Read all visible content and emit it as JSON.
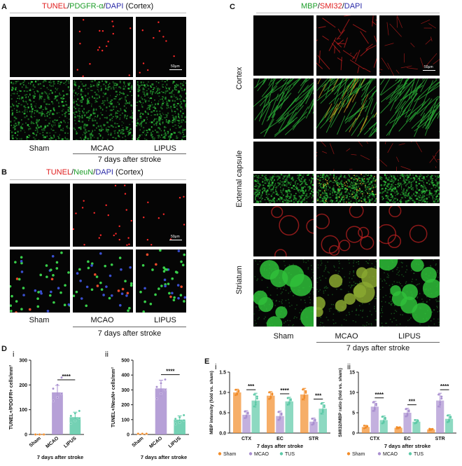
{
  "panelA": {
    "letter": "A",
    "title_parts": [
      {
        "text": "TUNEL",
        "c": "red"
      },
      {
        "text": "/",
        "c": "k"
      },
      {
        "text": "PDGFR-α",
        "c": "grn"
      },
      {
        "text": "/",
        "c": "k"
      },
      {
        "text": "DAPI",
        "c": "blu"
      },
      {
        "text": " (Cortex)",
        "c": "k"
      }
    ],
    "scale": "50μm",
    "groups": [
      "Sham",
      "MCAO",
      "LIPUS"
    ],
    "caption": "7 days after stroke"
  },
  "panelB": {
    "letter": "B",
    "title_parts": [
      {
        "text": "TUNEL",
        "c": "red"
      },
      {
        "text": "/",
        "c": "k"
      },
      {
        "text": "NeuN",
        "c": "grn"
      },
      {
        "text": "/",
        "c": "k"
      },
      {
        "text": "DAPI",
        "c": "blu"
      },
      {
        "text": " (Cortex)",
        "c": "k"
      }
    ],
    "scale": "50μm",
    "groups": [
      "Sham",
      "MCAO",
      "LIPUS"
    ],
    "caption": "7 days after stroke"
  },
  "panelC": {
    "letter": "C",
    "title_parts": [
      {
        "text": "MBP",
        "c": "grn"
      },
      {
        "text": "/",
        "c": "k"
      },
      {
        "text": "SMI32",
        "c": "red"
      },
      {
        "text": "/",
        "c": "k"
      },
      {
        "text": "DAPI",
        "c": "blu"
      }
    ],
    "scale": "50μm",
    "regions": [
      "Cortex",
      "External capsule",
      "Striatum"
    ],
    "groups": [
      "Sham",
      "MCAO",
      "LIPUS"
    ],
    "caption": "7 days after stroke"
  },
  "panelD": {
    "letter": "D",
    "sub_i": "i",
    "sub_ii": "ii"
  },
  "panelE": {
    "letter": "E",
    "sub_i": "i",
    "sub_ii": "ii"
  },
  "colors": {
    "sham": "#f28c28",
    "mcao": "#a98fd0",
    "lipus": "#5cc9a7"
  },
  "chart_data": [
    {
      "type": "bar",
      "id": "Di",
      "categories": [
        "Sham",
        "MCAO",
        "LIPUS"
      ],
      "values": [
        0,
        170,
        70
      ],
      "errors": [
        0,
        28,
        20
      ],
      "points": [
        [
          0,
          0,
          0,
          0,
          0,
          0
        ],
        [
          135,
          150,
          165,
          185,
          200,
          230
        ],
        [
          45,
          55,
          65,
          75,
          85,
          95
        ]
      ],
      "ylabel": "TUNEL+/PDGFR+ cells/mm²",
      "xlabel": "7 days after stroke",
      "ylim": [
        0,
        300
      ],
      "yticks": [
        0,
        100,
        200,
        300
      ],
      "significance": [
        {
          "from": 1,
          "to": 2,
          "label": "****"
        }
      ]
    },
    {
      "type": "bar",
      "id": "Dii",
      "categories": [
        "Sham",
        "MCAO",
        "LIPUS"
      ],
      "values": [
        5,
        310,
        100
      ],
      "errors": [
        0,
        55,
        25
      ],
      "points": [
        [
          5,
          5,
          5,
          5,
          5,
          5
        ],
        [
          240,
          275,
          300,
          320,
          345,
          370
        ],
        [
          70,
          80,
          95,
          105,
          115,
          130
        ]
      ],
      "ylabel": "TUNEL+/NeuN+ cells/mm²",
      "xlabel": "7 days after stroke",
      "ylim": [
        0,
        500
      ],
      "yticks": [
        0,
        100,
        200,
        300,
        400,
        500
      ],
      "significance": [
        {
          "from": 1,
          "to": 2,
          "label": "****"
        }
      ]
    },
    {
      "type": "bar",
      "id": "Ei",
      "categories": [
        "CTX",
        "EC",
        "STR"
      ],
      "series": [
        {
          "name": "Sham",
          "values": [
            1.0,
            0.92,
            0.95
          ],
          "errors": [
            0.08,
            0.1,
            0.15
          ]
        },
        {
          "name": "MCAO",
          "values": [
            0.45,
            0.42,
            0.28
          ],
          "errors": [
            0.1,
            0.12,
            0.09
          ]
        },
        {
          "name": "TUS",
          "values": [
            0.8,
            0.78,
            0.6
          ],
          "errors": [
            0.18,
            0.1,
            0.15
          ]
        }
      ],
      "ylabel": "MBP intensity (fold vs. sham)",
      "xlabel": "7 days after stroke",
      "ylim": [
        0,
        1.5
      ],
      "yticks": [
        0.0,
        0.5,
        1.0,
        1.5
      ],
      "significance": [
        {
          "group": 0,
          "label": "***"
        },
        {
          "group": 1,
          "label": "****"
        },
        {
          "group": 2,
          "label": "***"
        }
      ]
    },
    {
      "type": "bar",
      "id": "Eii",
      "categories": [
        "CTX",
        "EC",
        "STR"
      ],
      "series": [
        {
          "name": "Sham",
          "values": [
            1.5,
            1.3,
            0.9
          ],
          "errors": [
            0.4,
            0.2,
            0.2
          ]
        },
        {
          "name": "MCAO",
          "values": [
            6.5,
            5.0,
            8.0
          ],
          "errors": [
            1.3,
            1.1,
            1.8
          ]
        },
        {
          "name": "TUS",
          "values": [
            3.2,
            2.8,
            3.5
          ],
          "errors": [
            1.0,
            0.5,
            1.0
          ]
        }
      ],
      "ylabel": "SMI32/MBP ratio (fold vs. sham)",
      "xlabel": "7 days after stroke",
      "ylim": [
        0,
        15
      ],
      "yticks": [
        0,
        5,
        10,
        15
      ],
      "significance": [
        {
          "group": 0,
          "label": "****"
        },
        {
          "group": 1,
          "label": "***"
        },
        {
          "group": 2,
          "label": "****"
        }
      ]
    }
  ]
}
